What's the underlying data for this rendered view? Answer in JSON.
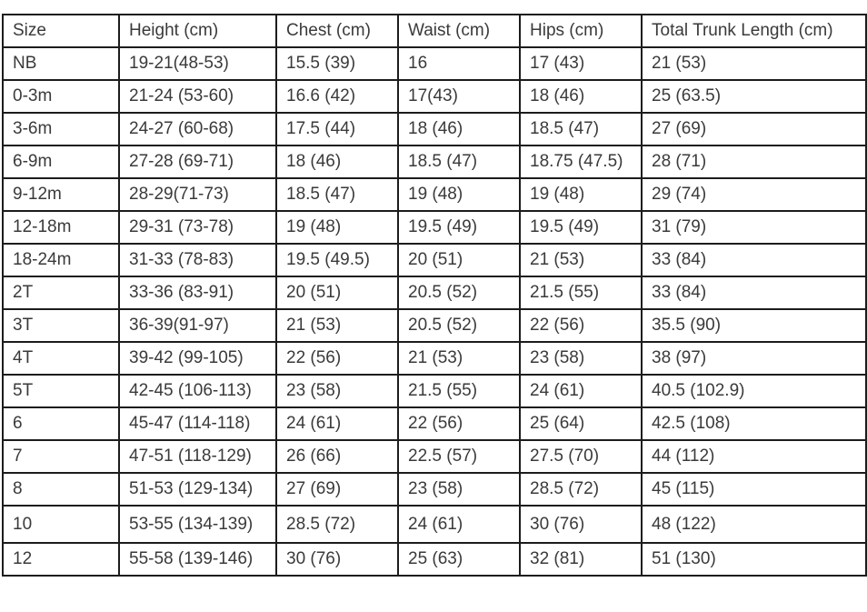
{
  "table": {
    "headers": [
      "Size",
      "Height (cm)",
      "Chest (cm)",
      "Waist (cm)",
      "Hips (cm)",
      "Total Trunk Length (cm)"
    ],
    "rows": [
      [
        "NB",
        "19-21(48-53)",
        "15.5 (39)",
        "16",
        "17 (43)",
        "21 (53)"
      ],
      [
        "0-3m",
        "21-24 (53-60)",
        "16.6 (42)",
        "17(43)",
        "18 (46)",
        "25 (63.5)"
      ],
      [
        "3-6m",
        "24-27 (60-68)",
        "17.5 (44)",
        "18 (46)",
        "18.5 (47)",
        "27 (69)"
      ],
      [
        "6-9m",
        "27-28 (69-71)",
        "18 (46)",
        "18.5 (47)",
        "18.75 (47.5)",
        "28 (71)"
      ],
      [
        "9-12m",
        "28-29(71-73)",
        "18.5 (47)",
        "19 (48)",
        "19 (48)",
        "29 (74)"
      ],
      [
        "12-18m",
        "29-31 (73-78)",
        "19 (48)",
        "19.5 (49)",
        "19.5 (49)",
        "31 (79)"
      ],
      [
        "18-24m",
        "31-33 (78-83)",
        "19.5 (49.5)",
        "20 (51)",
        "21 (53)",
        "33 (84)"
      ],
      [
        "2T",
        "33-36 (83-91)",
        "20 (51)",
        "20.5 (52)",
        "21.5 (55)",
        "33 (84)"
      ],
      [
        "3T",
        "36-39(91-97)",
        "21 (53)",
        "20.5 (52)",
        "22 (56)",
        "35.5 (90)"
      ],
      [
        "4T",
        "39-42 (99-105)",
        "22 (56)",
        "21 (53)",
        "23 (58)",
        "38 (97)"
      ],
      [
        "5T",
        "42-45 (106-113)",
        "23 (58)",
        "21.5 (55)",
        "24 (61)",
        "40.5 (102.9)"
      ],
      [
        "6",
        "45-47 (114-118)",
        "24 (61)",
        "22 (56)",
        "25 (64)",
        "42.5 (108)"
      ],
      [
        "7",
        "47-51 (118-129)",
        "26 (66)",
        "22.5 (57)",
        "27.5 (70)",
        "44 (112)"
      ],
      [
        "8",
        "51-53 (129-134)",
        "27 (69)",
        "23 (58)",
        "28.5 (72)",
        "45 (115)"
      ],
      [
        "10",
        "53-55 (134-139)",
        "28.5 (72)",
        "24 (61)",
        "30 (76)",
        "48 (122)"
      ],
      [
        "12",
        "55-58 (139-146)",
        "30 (76)",
        "25 (63)",
        "32 (81)",
        "51 (130)"
      ]
    ]
  }
}
